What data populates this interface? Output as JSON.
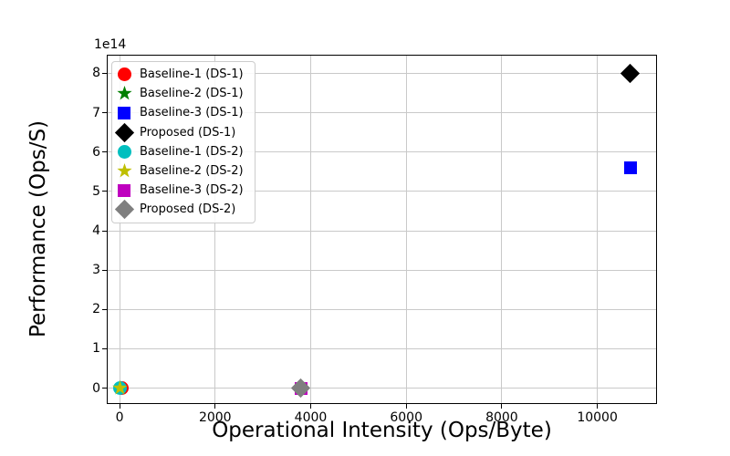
{
  "chart_data": {
    "type": "scatter",
    "title": "",
    "xlabel": "Operational Intensity (Ops/Byte)",
    "ylabel": "Performance (Ops/S)",
    "y_offset_text": "1e14",
    "grid": true,
    "grid_color": "#c9c9c9",
    "legend_position": "upper left",
    "x_ticks": [
      0,
      2000,
      4000,
      6000,
      8000,
      10000
    ],
    "y_ticks": [
      0,
      1,
      2,
      3,
      4,
      5,
      6,
      7,
      8
    ],
    "y_tick_scale": 100000000000000.0,
    "xlim": [
      -250,
      11230
    ],
    "ylim": [
      -38000000000000.0,
      845000000000000.0
    ],
    "series": [
      {
        "name": "Baseline-1 (DS-1)",
        "marker": "circle",
        "color": "#ff0000",
        "points": [
          {
            "x": 40,
            "y": 100000000000.0
          }
        ]
      },
      {
        "name": "Baseline-2 (DS-1)",
        "marker": "star",
        "color": "#008000",
        "points": [
          {
            "x": 0,
            "y": 100000000000.0
          }
        ]
      },
      {
        "name": "Baseline-3 (DS-1)",
        "marker": "square",
        "color": "#0000ff",
        "points": [
          {
            "x": 10690,
            "y": 560000000000000.0
          }
        ]
      },
      {
        "name": "Proposed (DS-1)",
        "marker": "diamond",
        "color": "#000000",
        "points": [
          {
            "x": 10690,
            "y": 800000000000000.0
          }
        ]
      },
      {
        "name": "Baseline-1 (DS-2)",
        "marker": "circle",
        "color": "#00bfbf",
        "points": [
          {
            "x": 0,
            "y": 100000000000.0
          }
        ]
      },
      {
        "name": "Baseline-2 (DS-2)",
        "marker": "star",
        "color": "#bfbf00",
        "points": [
          {
            "x": 0,
            "y": 200000000000.0
          }
        ]
      },
      {
        "name": "Baseline-3 (DS-2)",
        "marker": "square",
        "color": "#bf00bf",
        "points": [
          {
            "x": 3790,
            "y": 100000000000.0
          }
        ]
      },
      {
        "name": "Proposed (DS-2)",
        "marker": "diamond",
        "color": "#7f7f7f",
        "points": [
          {
            "x": 3790,
            "y": 150000000000.0
          }
        ]
      }
    ]
  }
}
